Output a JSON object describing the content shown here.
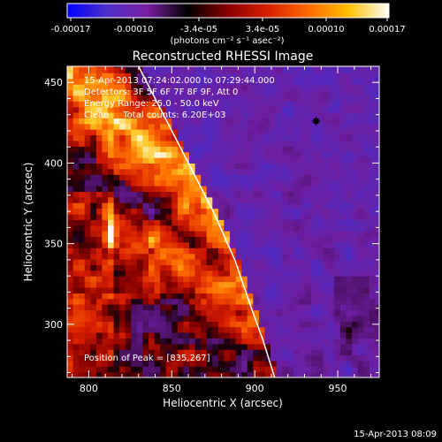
{
  "colorbar": {
    "tick_labels": [
      "-0.00017",
      "-0.00010",
      "-3.4e-05",
      "3.4e-05",
      "0.00010",
      "0.00017"
    ],
    "units": "(photons cm⁻² s⁻¹ asec⁻²)",
    "range": [
      -0.00017,
      0.00017
    ],
    "colors": [
      "#0000ff",
      "#4f2fc8",
      "#7a1fa0",
      "#000000",
      "#8a0000",
      "#d82000",
      "#ff6a00",
      "#ffc000",
      "#ffffff"
    ]
  },
  "chart_data": {
    "type": "heatmap",
    "title": "Reconstructed RHESSI Image",
    "xlabel": "Heliocentric X (arcsec)",
    "ylabel": "Heliocentric Y (arcsec)",
    "xlim": [
      787,
      975
    ],
    "ylim": [
      267,
      460
    ],
    "x_ticks": [
      800,
      850,
      900,
      950
    ],
    "y_ticks": [
      300,
      350,
      400,
      450
    ],
    "annotations": [
      "15-Apr-2013 07:24:02.000 to 07:29:44.000",
      "Detectors: 3F 5F 6F 7F 8F 9F, Att 0",
      "Energy Range: 25.0 - 50.0 keV",
      "Clean     Total counts: 6.20E+03"
    ],
    "peak_label": "Position of Peak = [835,267]",
    "peak_position": [
      835,
      267
    ],
    "limb_curve": [
      [
        830,
        460
      ],
      [
        845,
        430
      ],
      [
        860,
        400
      ],
      [
        875,
        370
      ],
      [
        888,
        340
      ],
      [
        898,
        310
      ],
      [
        905,
        290
      ],
      [
        912,
        267
      ]
    ],
    "marker": [
      937,
      426
    ],
    "timestamp": "15-Apr-2013 08:09"
  }
}
